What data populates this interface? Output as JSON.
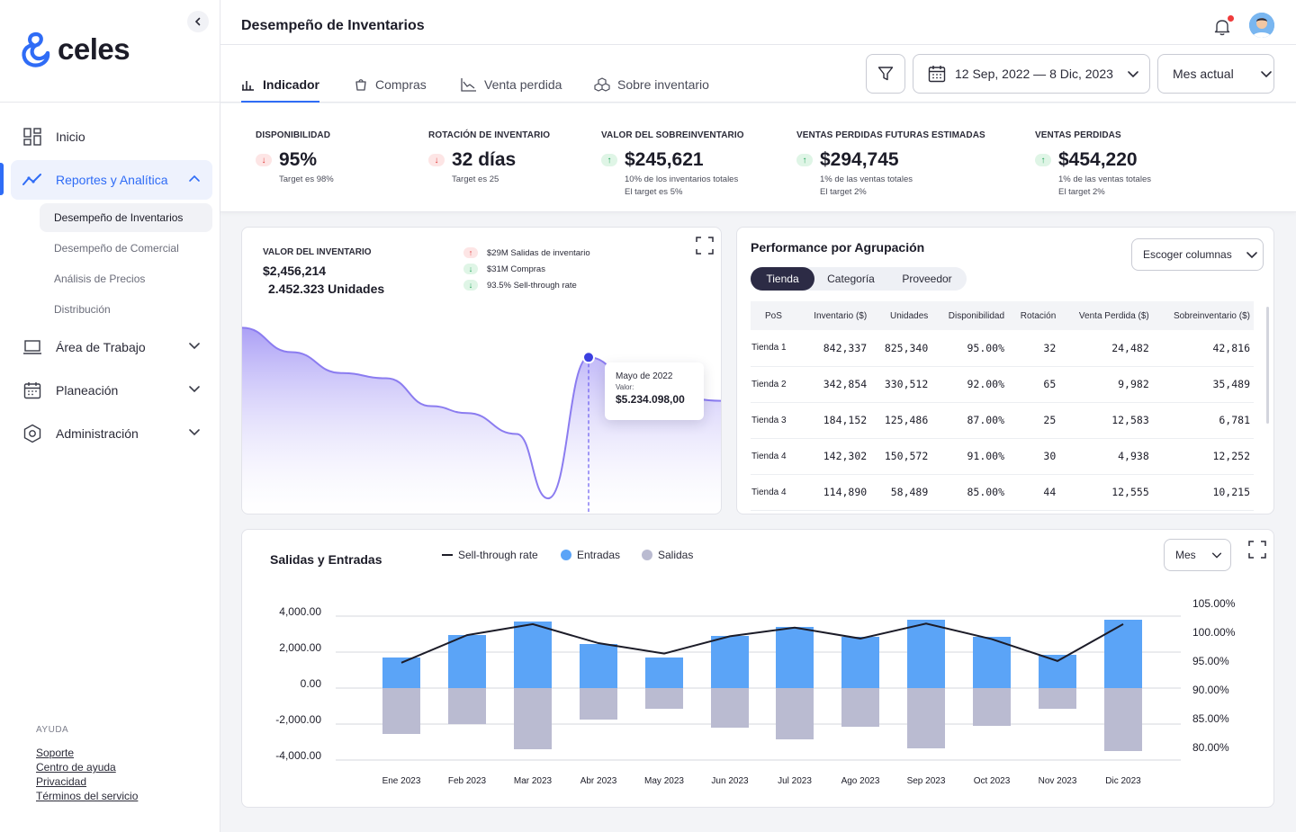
{
  "app": {
    "logo_text": "celes",
    "page_title": "Desempeño de Inventarios"
  },
  "sidebar": {
    "items": [
      {
        "label": "Inicio"
      },
      {
        "label": "Reportes y Analítica"
      },
      {
        "label": "Área de Trabajo"
      },
      {
        "label": "Planeación"
      },
      {
        "label": "Administración"
      }
    ],
    "subitems": [
      {
        "label": "Desempeño de Inventarios"
      },
      {
        "label": "Desempeño de Comercial"
      },
      {
        "label": "Análisis de Precios"
      },
      {
        "label": "Distribución"
      }
    ],
    "help": {
      "title": "AYUDA",
      "links": [
        "Soporte",
        "Centro de ayuda",
        "Privacidad",
        "Términos del servicio"
      ]
    }
  },
  "tabs": [
    {
      "label": "Indicador"
    },
    {
      "label": "Compras"
    },
    {
      "label": "Venta perdida"
    },
    {
      "label": "Sobre inventario"
    }
  ],
  "filters": {
    "date_range": "12 Sep, 2022 — 8 Dic, 2023",
    "period": "Mes actual"
  },
  "kpis": [
    {
      "label": "DISPONIBILIDAD",
      "value": "95%",
      "trend": "down",
      "notes": [
        "Target es 98%"
      ]
    },
    {
      "label": "ROTACIÓN DE INVENTARIO",
      "value": "32 días",
      "trend": "down",
      "notes": [
        "Target es 25"
      ]
    },
    {
      "label": "VALOR DEL SOBREINVENTARIO",
      "value": "$245,621",
      "trend": "up",
      "notes": [
        "10% de los inventarios totales",
        "El target es 5%"
      ]
    },
    {
      "label": "VENTAS PERDIDAS FUTURAS ESTIMADAS",
      "value": "$294,745",
      "trend": "up",
      "notes": [
        "1% de las ventas totales",
        "El target 2%"
      ]
    },
    {
      "label": "VENTAS PERDIDAS",
      "value": "$454,220",
      "trend": "up",
      "notes": [
        "1% de las ventas totales",
        "El target 2%"
      ]
    }
  ],
  "valor_card": {
    "label": "VALOR DEL INVENTARIO",
    "amount": "$2,456,214",
    "units": "2.452.323 Unidades",
    "legend": [
      {
        "text": "$29M Salidas de inventario",
        "trend": "up-red"
      },
      {
        "text": "$31M Compras",
        "trend": "down-green"
      },
      {
        "text": "93.5% Sell-through rate",
        "trend": "down-green"
      }
    ],
    "tooltip": {
      "month": "Mayo de 2022",
      "sublabel": "Valor:",
      "value": "$5.234.098,00"
    }
  },
  "performance": {
    "title": "Performance por Agrupación",
    "columns_button": "Escoger columnas",
    "segments": [
      "Tienda",
      "Categoría",
      "Proveedor"
    ],
    "headers": [
      "PoS",
      "Inventario ($)",
      "Unidades",
      "Disponibilidad",
      "Rotación",
      "Venta Perdida ($)",
      "Sobreinventario ($)"
    ],
    "rows": [
      [
        "Tienda 1",
        "842,337",
        "825,340",
        "95.00%",
        "32",
        "24,482",
        "42,816"
      ],
      [
        "Tienda 2",
        "342,854",
        "330,512",
        "92.00%",
        "65",
        "9,982",
        "35,489"
      ],
      [
        "Tienda 3",
        "184,152",
        "125,486",
        "87.00%",
        "25",
        "12,583",
        "6,781"
      ],
      [
        "Tienda 4",
        "142,302",
        "150,572",
        "91.00%",
        "30",
        "4,938",
        "12,252"
      ],
      [
        "Tienda 4",
        "114,890",
        "58,489",
        "85.00%",
        "44",
        "12,555",
        "10,215"
      ]
    ]
  },
  "salidas": {
    "title": "Salidas y Entradas",
    "legend": [
      "Sell-through rate",
      "Entradas",
      "Salidas"
    ],
    "period": "Mes"
  },
  "colors": {
    "accent": "#2f6cf6",
    "entradas": "#5ba4f7",
    "salidas": "#babbd1",
    "area": "#8b7cf0"
  },
  "chart_data": [
    {
      "type": "area",
      "title": "VALOR DEL INVENTARIO",
      "values": [
        100,
        86,
        74,
        71,
        55,
        51,
        39,
        2,
        83,
        66,
        58
      ],
      "highlight_index": 8,
      "ylim": [
        0,
        110
      ]
    },
    {
      "type": "bar",
      "title": "Salidas y Entradas",
      "categories": [
        "Ene 2023",
        "Feb 2023",
        "Mar 2023",
        "Abr 2023",
        "May 2023",
        "Jun 2023",
        "Jul 2023",
        "Ago 2023",
        "Sep 2023",
        "Oct 2023",
        "Nov 2023",
        "Dic 2023"
      ],
      "series": [
        {
          "name": "Entradas",
          "values": [
            1700,
            2950,
            3700,
            2450,
            1700,
            2900,
            3400,
            2850,
            3800,
            2850,
            1850,
            3800
          ]
        },
        {
          "name": "Salidas",
          "values": [
            -2550,
            -2000,
            -3400,
            -1750,
            -1150,
            -2200,
            -2850,
            -2150,
            -3350,
            -2100,
            -1150,
            -3500
          ]
        },
        {
          "name": "Sell-through rate",
          "axis": "right",
          "values": [
            95.5,
            100.3,
            102.2,
            98.9,
            97.1,
            100.1,
            101.6,
            99.7,
            102.3,
            99.6,
            95.8,
            102.2
          ]
        }
      ],
      "ylim": [
        -4000,
        4000
      ],
      "yticks": [
        "4,000.00",
        "2,000.00",
        "0.00",
        "-2,000.00",
        "-4,000.00"
      ],
      "y2lim": [
        80,
        105
      ],
      "y2ticks": [
        "105.00%",
        "100.00%",
        "95.00%",
        "90.00%",
        "85.00%",
        "80.00%"
      ]
    }
  ]
}
